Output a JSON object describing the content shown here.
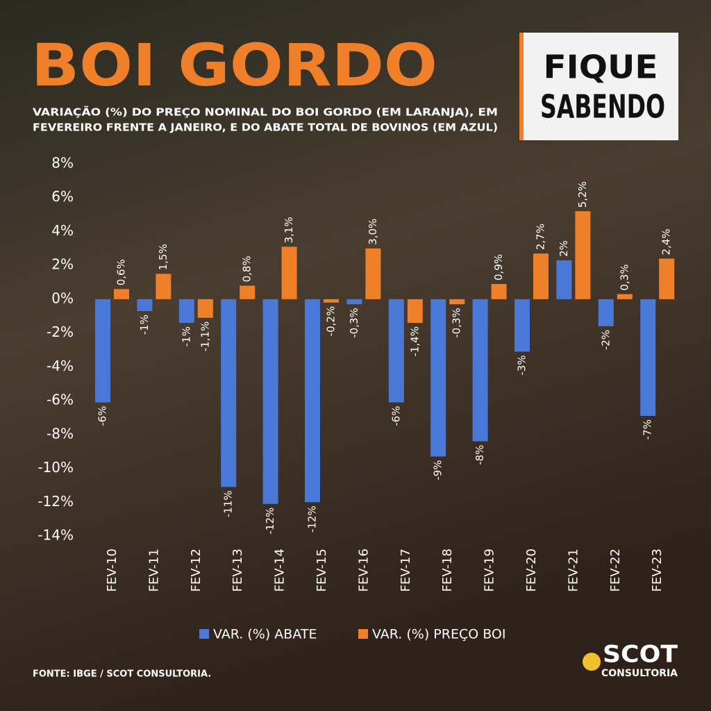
{
  "chart_data": {
    "type": "bar",
    "title": "BOI GORDO",
    "subtitle": [
      "VARIAÇÃO (%) DO PREÇO NOMINAL DO BOI GORDO (EM LARANJA), EM",
      "FEVEREIRO FRENTE A JANEIRO, E DO ABATE TOTAL DE BOVINOS (EM AZUL)"
    ],
    "badge": [
      "FIQUE",
      "SABENDO"
    ],
    "source": "FONTE: IBGE / SCOT CONSULTORIA.",
    "logo": [
      "SCOT",
      "CONSULTORIA"
    ],
    "categories": [
      "FEV-10",
      "FEV-11",
      "FEV-12",
      "FEV-13",
      "FEV-14",
      "FEV-15",
      "FEV-16",
      "FEV-17",
      "FEV-18",
      "FEV-19",
      "FEV-20",
      "FEV-21",
      "FEV-22",
      "FEV-23"
    ],
    "series": [
      {
        "name": "VAR. (%) ABATE",
        "color": "#4a78d8",
        "values": [
          -6.1,
          -0.7,
          -1.4,
          -11.1,
          -12.1,
          -12.0,
          -0.3,
          -6.1,
          -9.3,
          -8.4,
          -3.1,
          2.3,
          -1.6,
          -6.9
        ],
        "value_labels": [
          "-6%",
          "-1%",
          "-1%",
          "-11%",
          "-12%",
          "-12%",
          "-0,3%",
          "-6%",
          "-9%",
          "-8%",
          "-3%",
          "2%",
          "-2%",
          "-7%"
        ]
      },
      {
        "name": "VAR. (%) PREÇO BOI",
        "color": "#f07f2a",
        "values": [
          0.6,
          1.5,
          -1.1,
          0.8,
          3.1,
          -0.2,
          3.0,
          -1.4,
          -0.3,
          0.9,
          2.7,
          5.2,
          0.3,
          2.4
        ],
        "value_labels": [
          "0,6%",
          "1,5%",
          "-1,1%",
          "0,8%",
          "3,1%",
          "-0,2%",
          "3,0%",
          "-1,4%",
          "-0,3%",
          "0,9%",
          "2,7%",
          "5,2%",
          "0,3%",
          "2,4%"
        ]
      }
    ],
    "ylim": [
      -14,
      8
    ],
    "yticks": [
      {
        "value": 8,
        "label": "8%"
      },
      {
        "value": 6,
        "label": "6%"
      },
      {
        "value": 4,
        "label": "4%"
      },
      {
        "value": 2,
        "label": "2%"
      },
      {
        "value": 0,
        "label": "0%"
      },
      {
        "value": -2,
        "label": "-2%"
      },
      {
        "value": -4,
        "label": "-4%"
      },
      {
        "value": -6,
        "label": "-6%"
      },
      {
        "value": -8,
        "label": "-8%"
      },
      {
        "value": -10,
        "label": "-10%"
      },
      {
        "value": -12,
        "label": "-12%"
      },
      {
        "value": -14,
        "label": "-14%"
      }
    ]
  }
}
